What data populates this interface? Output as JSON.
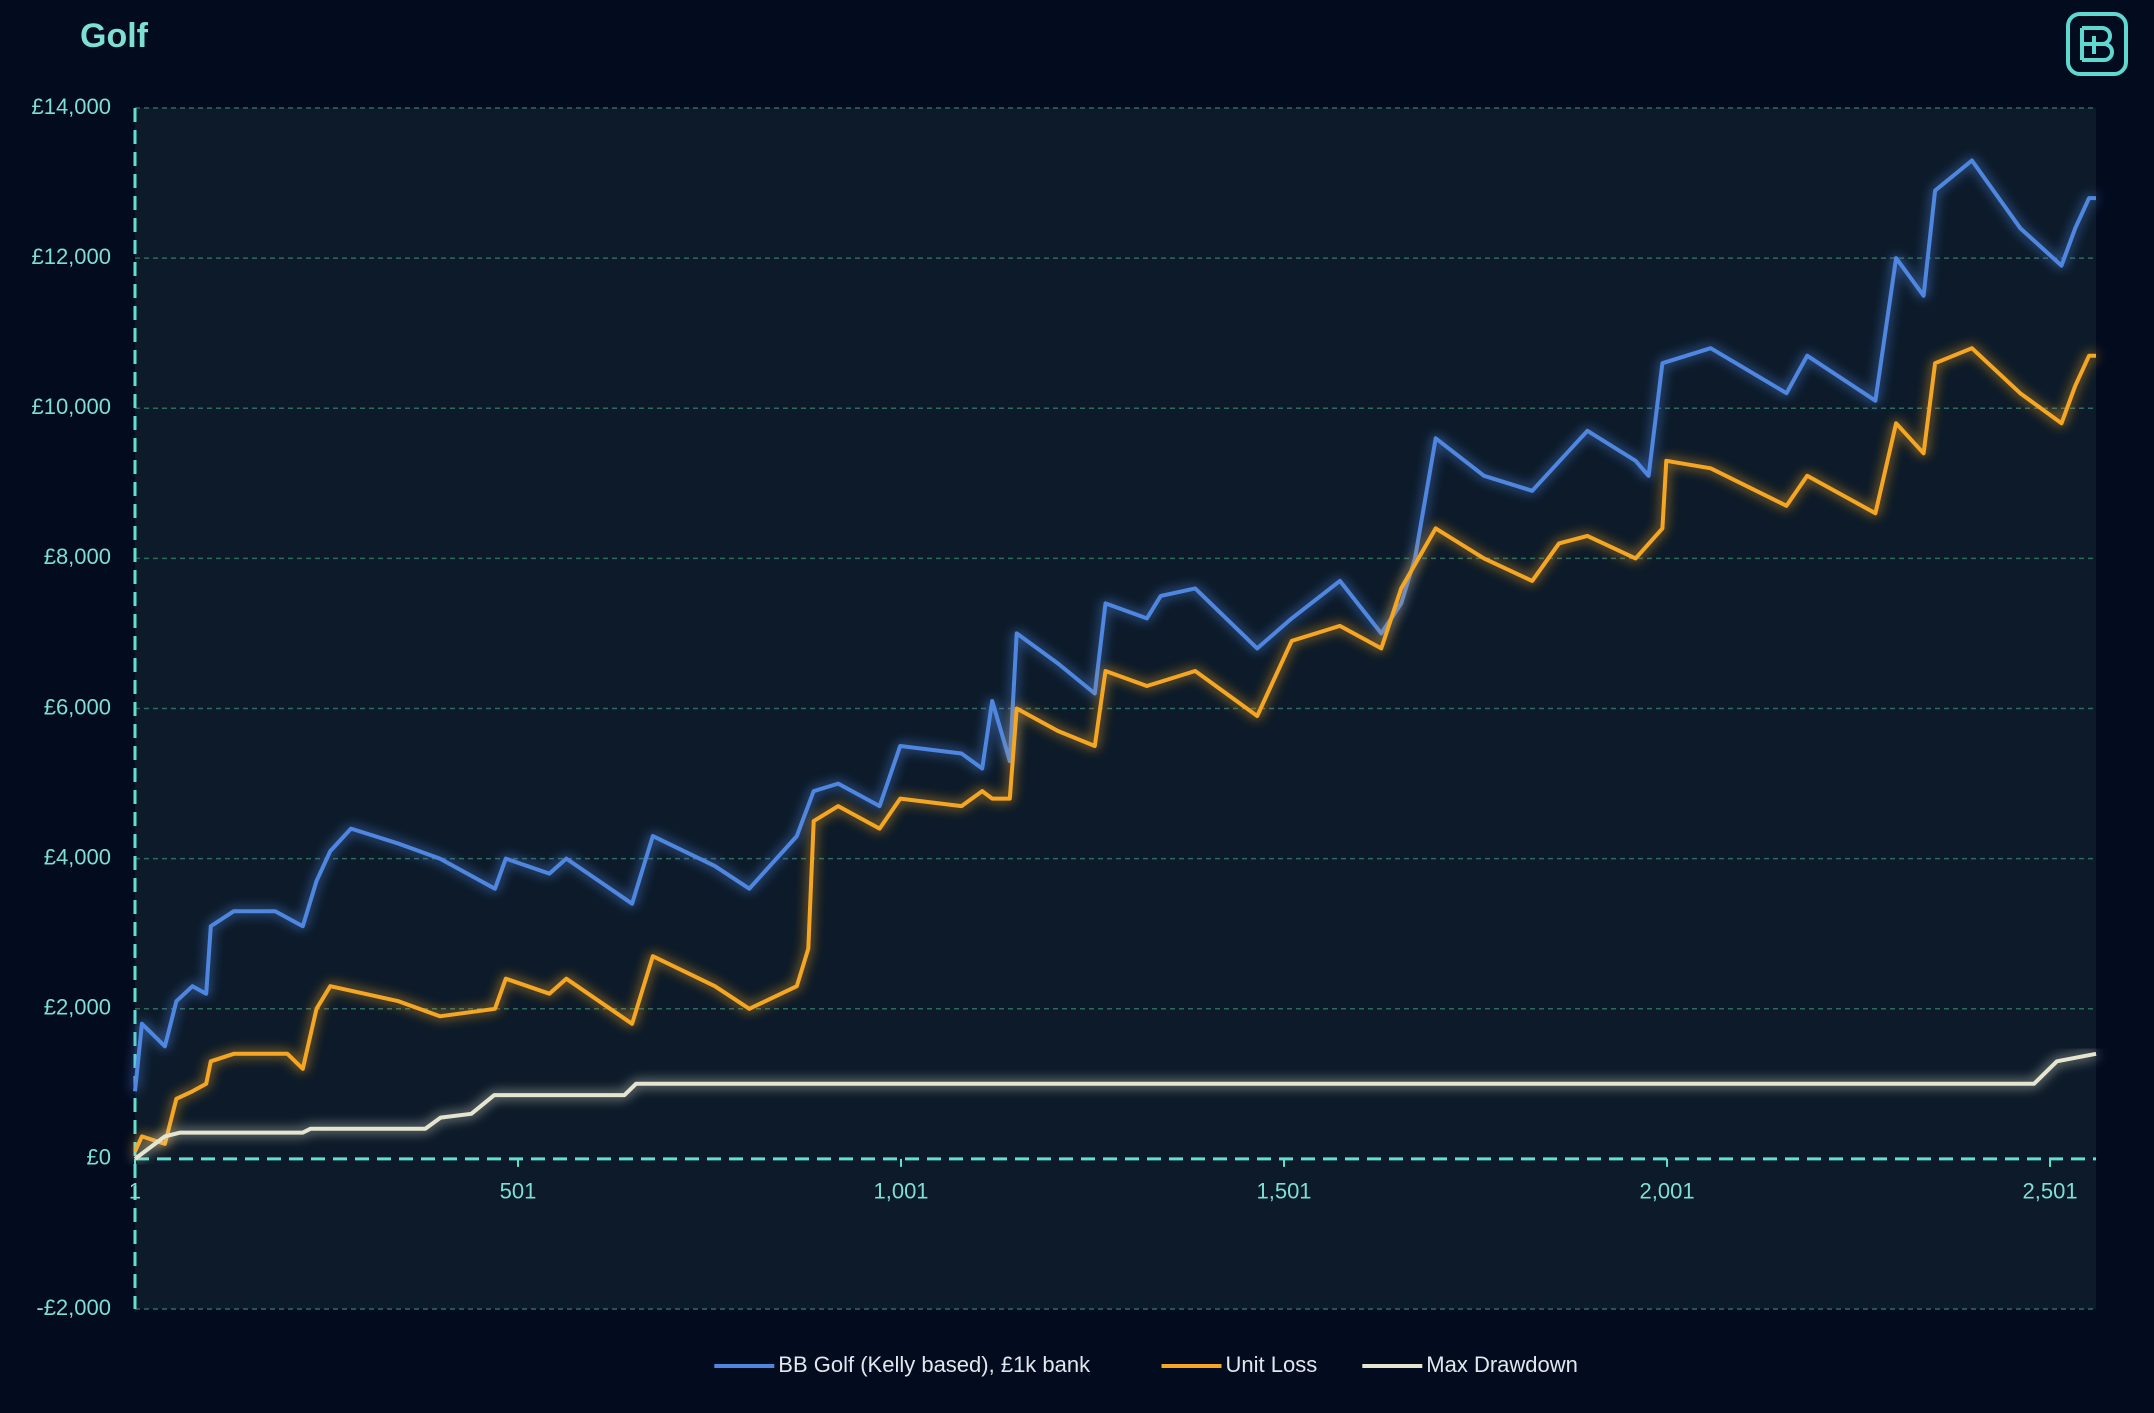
{
  "chart_data": {
    "type": "line",
    "title": "Golf",
    "xlim": [
      1,
      2561
    ],
    "xticks": [
      1,
      501,
      {
        "value": 1001,
        "label": "1,001"
      },
      {
        "value": 1501,
        "label": "1,501"
      },
      {
        "value": 2001,
        "label": "2,001"
      },
      {
        "value": 2501,
        "label": "2,501"
      }
    ],
    "ylim": [
      -2000,
      14000
    ],
    "yticks": [
      {
        "value": -2000,
        "label": "-£2,000"
      },
      {
        "value": 0,
        "label": "£0"
      },
      {
        "value": 2000,
        "label": "£2,000"
      },
      {
        "value": 4000,
        "label": "£4,000"
      },
      {
        "value": 6000,
        "label": "£6,000"
      },
      {
        "value": 8000,
        "label": "£8,000"
      },
      {
        "value": 10000,
        "label": "£10,000"
      },
      {
        "value": 12000,
        "label": "£12,000"
      },
      {
        "value": 14000,
        "label": "£14,000"
      }
    ],
    "grid": true,
    "legend": "bottom",
    "series": [
      {
        "name": "BB Golf (Kelly based), £1k bank",
        "color": "#4f86e0",
        "x": [
          1,
          10,
          40,
          55,
          76,
          94,
          100,
          130,
          184,
          220,
          238,
          256,
          283,
          345,
          399,
          471,
          485,
          542,
          564,
          650,
          677,
          758,
          803,
          865,
          887,
          919,
          973,
          1000,
          1080,
          1107,
          1120,
          1143,
          1152,
          1206,
          1254,
          1268,
          1322,
          1340,
          1385,
          1466,
          1511,
          1574,
          1628,
          1654,
          1672,
          1699,
          1762,
          1825,
          1897,
          1960,
          1977,
          1995,
          2058,
          2157,
          2184,
          2273,
          2300,
          2336,
          2351,
          2399,
          2462,
          2516,
          2534,
          2552,
          2561
        ],
        "values": [
          900,
          1800,
          1500,
          2100,
          2300,
          2200,
          3100,
          3300,
          3300,
          3100,
          3700,
          4100,
          4400,
          4200,
          4000,
          3600,
          4000,
          3800,
          4000,
          3400,
          4300,
          3900,
          3600,
          4300,
          4900,
          5000,
          4700,
          5500,
          5400,
          5200,
          6100,
          5300,
          7000,
          6600,
          6200,
          7400,
          7200,
          7500,
          7600,
          6800,
          7200,
          7700,
          7000,
          7400,
          8000,
          9600,
          9100,
          8900,
          9700,
          9300,
          9100,
          10600,
          10800,
          10200,
          10700,
          10100,
          12000,
          11500,
          12900,
          13300,
          12400,
          11900,
          12400,
          12800,
          12800
        ]
      },
      {
        "name": "Unit Loss",
        "color": "#f5a623",
        "x": [
          1,
          10,
          40,
          55,
          76,
          94,
          100,
          130,
          200,
          220,
          238,
          256,
          345,
          399,
          471,
          485,
          542,
          564,
          650,
          677,
          758,
          803,
          865,
          880,
          887,
          919,
          973,
          1000,
          1080,
          1107,
          1120,
          1143,
          1152,
          1206,
          1254,
          1268,
          1322,
          1385,
          1466,
          1511,
          1574,
          1628,
          1654,
          1699,
          1762,
          1825,
          1860,
          1897,
          1960,
          1995,
          2000,
          2058,
          2157,
          2184,
          2273,
          2300,
          2336,
          2351,
          2399,
          2462,
          2516,
          2534,
          2552,
          2561
        ],
        "values": [
          100,
          300,
          200,
          800,
          900,
          1000,
          1300,
          1400,
          1400,
          1200,
          2000,
          2300,
          2100,
          1900,
          2000,
          2400,
          2200,
          2400,
          1800,
          2700,
          2300,
          2000,
          2300,
          2800,
          4500,
          4700,
          4400,
          4800,
          4700,
          4900,
          4800,
          4800,
          6000,
          5700,
          5500,
          6500,
          6300,
          6500,
          5900,
          6900,
          7100,
          6800,
          7600,
          8400,
          8000,
          7700,
          8200,
          8300,
          8000,
          8400,
          9300,
          9200,
          8700,
          9100,
          8600,
          9800,
          9400,
          10600,
          10800,
          10200,
          9800,
          10300,
          10700,
          10700
        ]
      },
      {
        "name": "Max Drawdown",
        "color": "#e6e6d0",
        "x": [
          1,
          40,
          60,
          220,
          230,
          380,
          400,
          440,
          470,
          640,
          655,
          2480,
          2510,
          2561
        ],
        "values": [
          0,
          300,
          350,
          350,
          400,
          400,
          550,
          600,
          850,
          850,
          1000,
          1000,
          1300,
          1400
        ]
      }
    ]
  }
}
